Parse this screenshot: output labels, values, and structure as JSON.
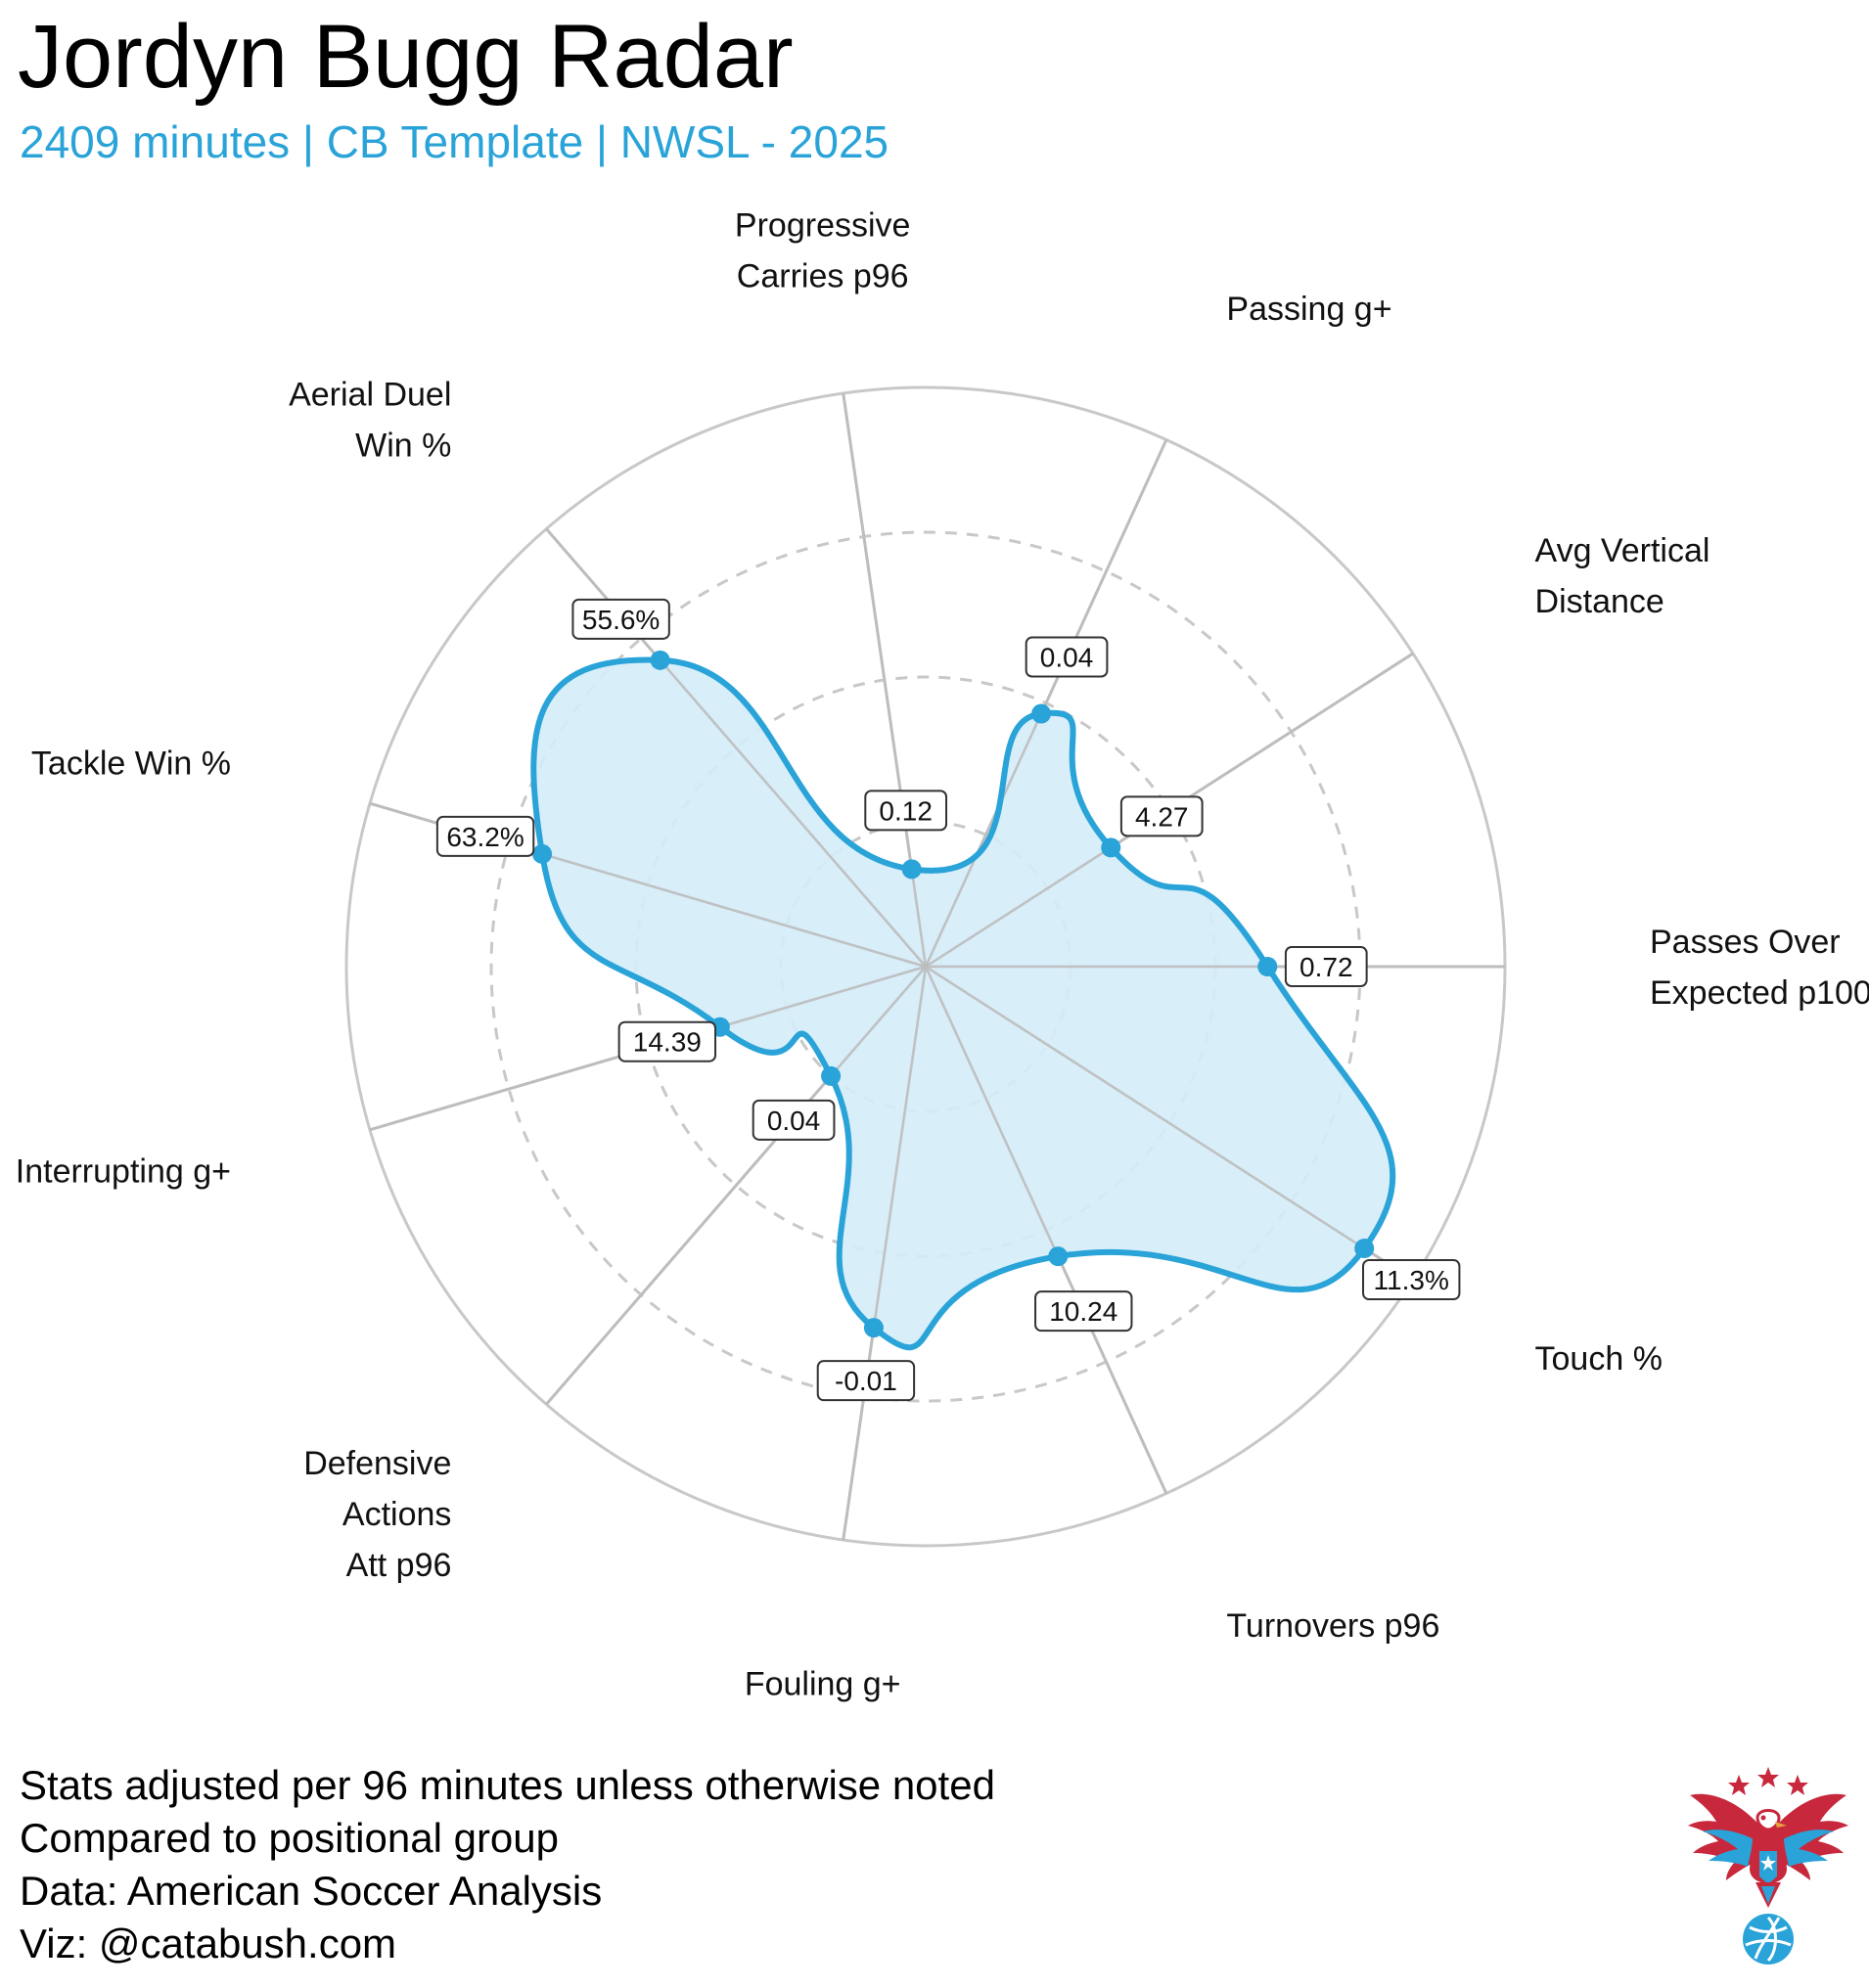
{
  "header": {
    "title": "Jordyn Bugg Radar",
    "subtitle": "2409 minutes | CB Template | NWSL - 2025"
  },
  "colors": {
    "accent": "#29a3d8",
    "fill": "#d4ecf8",
    "grid": "#c8c8c8",
    "spoke": "#bdbdbd"
  },
  "chart_data": {
    "type": "radar",
    "title": "Jordyn Bugg Radar",
    "subtitle": "2409 minutes | CB Template | NWSL - 2025",
    "scale": "percentile",
    "rlim": [
      0,
      100
    ],
    "gridlines_dashed": [
      25,
      50,
      75
    ],
    "axes": [
      {
        "label": [
          "Passes Over",
          "Expected p100"
        ],
        "value": "0.72",
        "percentile": 59
      },
      {
        "label": [
          "Touch %"
        ],
        "value": "11.3%",
        "percentile": 90
      },
      {
        "label": [
          "Turnovers p96"
        ],
        "value": "10.24",
        "percentile": 55
      },
      {
        "label": [
          "Fouling g+"
        ],
        "value": "-0.01",
        "percentile": 63
      },
      {
        "label": [
          "Defensive",
          "Actions",
          "Att p96"
        ],
        "value": "0.04",
        "percentile": 25
      },
      {
        "label": [
          "Interrupting g+"
        ],
        "value": "14.39",
        "percentile": 37
      },
      {
        "label": [
          "Tackle Win %"
        ],
        "value": "63.2%",
        "percentile": 69
      },
      {
        "label": [
          "Aerial Duel",
          "Win %"
        ],
        "value": "55.6%",
        "percentile": 70
      },
      {
        "label": [
          "Progressive",
          "Carries p96"
        ],
        "value": "0.12",
        "percentile": 17
      },
      {
        "label": [
          "Passing g+"
        ],
        "value": "0.04",
        "percentile": 48
      },
      {
        "label": [
          "Avg Vertical",
          "Distance"
        ],
        "value": "4.27",
        "percentile": 38
      }
    ]
  },
  "footer": {
    "line1": "Stats adjusted per 96 minutes unless otherwise noted",
    "line2": "Compared to positional group",
    "line3": "Data: American Soccer Analysis",
    "line4": "Viz: @catabush.com"
  },
  "logo": {
    "icon": "eagle-soccer-ball-logo"
  }
}
